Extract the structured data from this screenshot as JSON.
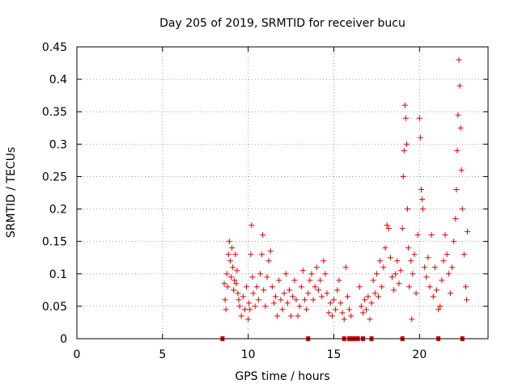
{
  "chart_data": {
    "type": "scatter",
    "title": "Day 205 of 2019, SRMTID for receiver bucu",
    "xlabel": "GPS time / hours",
    "ylabel": "SRMTID / TECUs",
    "xlim": [
      0,
      24
    ],
    "ylim": [
      0,
      0.45
    ],
    "xticks": [
      0,
      5,
      10,
      15,
      20
    ],
    "yticks": [
      0,
      0.05,
      0.1,
      0.15,
      0.2,
      0.25,
      0.3,
      0.35,
      0.4,
      0.45
    ],
    "xtick_labels": [
      "0",
      "5",
      "10",
      "15",
      "20"
    ],
    "ytick_labels": [
      "0",
      "0.05",
      "0.1",
      "0.15",
      "0.2",
      "0.25",
      "0.3",
      "0.35",
      "0.4",
      "0.45"
    ],
    "grid": true,
    "marker": "plus",
    "color": "#e00000",
    "baseline_markers_x": [
      8.5,
      13.5,
      15.6,
      15.9,
      16.0,
      16.1,
      16.2,
      16.4,
      16.7,
      17.2,
      19.0,
      21.1,
      22.5
    ],
    "series": [
      {
        "name": "SRMTID",
        "points": [
          [
            8.6,
            0.085
          ],
          [
            8.65,
            0.06
          ],
          [
            8.7,
            0.045
          ],
          [
            8.75,
            0.1
          ],
          [
            8.8,
            0.08
          ],
          [
            8.85,
            0.13
          ],
          [
            8.9,
            0.15
          ],
          [
            8.95,
            0.12
          ],
          [
            9.0,
            0.095
          ],
          [
            9.05,
            0.14
          ],
          [
            9.1,
            0.11
          ],
          [
            9.15,
            0.075
          ],
          [
            9.2,
            0.09
          ],
          [
            9.25,
            0.13
          ],
          [
            9.3,
            0.085
          ],
          [
            9.35,
            0.105
          ],
          [
            9.4,
            0.07
          ],
          [
            9.45,
            0.06
          ],
          [
            9.5,
            0.05
          ],
          [
            9.6,
            0.035
          ],
          [
            9.7,
            0.065
          ],
          [
            9.8,
            0.045
          ],
          [
            9.9,
            0.08
          ],
          [
            10.0,
            0.03
          ],
          [
            10.05,
            0.055
          ],
          [
            10.1,
            0.045
          ],
          [
            10.15,
            0.13
          ],
          [
            10.2,
            0.175
          ],
          [
            10.25,
            0.095
          ],
          [
            10.3,
            0.07
          ],
          [
            10.4,
            0.05
          ],
          [
            10.5,
            0.08
          ],
          [
            10.6,
            0.06
          ],
          [
            10.7,
            0.1
          ],
          [
            10.8,
            0.13
          ],
          [
            10.85,
            0.16
          ],
          [
            10.9,
            0.075
          ],
          [
            11.0,
            0.05
          ],
          [
            11.1,
            0.095
          ],
          [
            11.2,
            0.12
          ],
          [
            11.3,
            0.135
          ],
          [
            11.4,
            0.08
          ],
          [
            11.5,
            0.055
          ],
          [
            11.6,
            0.065
          ],
          [
            11.7,
            0.035
          ],
          [
            11.8,
            0.09
          ],
          [
            11.9,
            0.06
          ],
          [
            12.0,
            0.045
          ],
          [
            12.1,
            0.07
          ],
          [
            12.2,
            0.1
          ],
          [
            12.3,
            0.055
          ],
          [
            12.4,
            0.075
          ],
          [
            12.5,
            0.035
          ],
          [
            12.6,
            0.065
          ],
          [
            12.7,
            0.09
          ],
          [
            12.8,
            0.06
          ],
          [
            12.9,
            0.035
          ],
          [
            13.0,
            0.05
          ],
          [
            13.1,
            0.08
          ],
          [
            13.2,
            0.105
          ],
          [
            13.3,
            0.06
          ],
          [
            13.4,
            0.045
          ],
          [
            13.5,
            0.07
          ],
          [
            13.6,
            0.09
          ],
          [
            13.7,
            0.1
          ],
          [
            13.8,
            0.06
          ],
          [
            13.9,
            0.08
          ],
          [
            14.0,
            0.11
          ],
          [
            14.1,
            0.075
          ],
          [
            14.2,
            0.09
          ],
          [
            14.3,
            0.065
          ],
          [
            14.4,
            0.12
          ],
          [
            14.5,
            0.1
          ],
          [
            14.6,
            0.07
          ],
          [
            14.7,
            0.04
          ],
          [
            14.8,
            0.055
          ],
          [
            14.9,
            0.035
          ],
          [
            15.0,
            0.06
          ],
          [
            15.1,
            0.045
          ],
          [
            15.2,
            0.075
          ],
          [
            15.3,
            0.09
          ],
          [
            15.4,
            0.055
          ],
          [
            15.5,
            0.04
          ],
          [
            15.6,
            0.03
          ],
          [
            15.7,
            0.11
          ],
          [
            15.8,
            0.065
          ],
          [
            15.9,
            0.045
          ],
          [
            16.0,
            0.035
          ],
          [
            16.5,
            0.08
          ],
          [
            16.6,
            0.05
          ],
          [
            16.7,
            0.04
          ],
          [
            16.8,
            0.06
          ],
          [
            16.9,
            0.045
          ],
          [
            17.0,
            0.065
          ],
          [
            17.1,
            0.03
          ],
          [
            17.2,
            0.055
          ],
          [
            17.3,
            0.09
          ],
          [
            17.4,
            0.07
          ],
          [
            17.5,
            0.1
          ],
          [
            17.6,
            0.065
          ],
          [
            17.7,
            0.12
          ],
          [
            17.8,
            0.08
          ],
          [
            17.9,
            0.11
          ],
          [
            18.0,
            0.14
          ],
          [
            18.1,
            0.175
          ],
          [
            18.2,
            0.17
          ],
          [
            18.3,
            0.125
          ],
          [
            18.4,
            0.095
          ],
          [
            18.5,
            0.075
          ],
          [
            18.6,
            0.1
          ],
          [
            18.7,
            0.12
          ],
          [
            18.8,
            0.085
          ],
          [
            18.9,
            0.105
          ],
          [
            19.0,
            0.17
          ],
          [
            19.05,
            0.25
          ],
          [
            19.1,
            0.29
          ],
          [
            19.15,
            0.36
          ],
          [
            19.2,
            0.34
          ],
          [
            19.25,
            0.3
          ],
          [
            19.3,
            0.2
          ],
          [
            19.35,
            0.14
          ],
          [
            19.4,
            0.08
          ],
          [
            19.5,
            0.12
          ],
          [
            19.55,
            0.03
          ],
          [
            19.6,
            0.1
          ],
          [
            19.7,
            0.13
          ],
          [
            19.8,
            0.07
          ],
          [
            19.9,
            0.16
          ],
          [
            20.0,
            0.34
          ],
          [
            20.05,
            0.31
          ],
          [
            20.1,
            0.23
          ],
          [
            20.15,
            0.215
          ],
          [
            20.2,
            0.2
          ],
          [
            20.3,
            0.11
          ],
          [
            20.4,
            0.095
          ],
          [
            20.5,
            0.125
          ],
          [
            20.6,
            0.08
          ],
          [
            20.7,
            0.16
          ],
          [
            20.8,
            0.065
          ],
          [
            20.9,
            0.11
          ],
          [
            21.0,
            0.075
          ],
          [
            21.1,
            0.045
          ],
          [
            21.2,
            0.05
          ],
          [
            21.3,
            0.09
          ],
          [
            21.4,
            0.12
          ],
          [
            21.5,
            0.16
          ],
          [
            21.6,
            0.13
          ],
          [
            21.7,
            0.1
          ],
          [
            21.8,
            0.07
          ],
          [
            21.9,
            0.11
          ],
          [
            22.0,
            0.15
          ],
          [
            22.1,
            0.185
          ],
          [
            22.15,
            0.23
          ],
          [
            22.2,
            0.29
          ],
          [
            22.25,
            0.345
          ],
          [
            22.3,
            0.43
          ],
          [
            22.35,
            0.39
          ],
          [
            22.4,
            0.325
          ],
          [
            22.45,
            0.26
          ],
          [
            22.5,
            0.2
          ],
          [
            22.6,
            0.13
          ],
          [
            22.7,
            0.08
          ],
          [
            22.75,
            0.06
          ],
          [
            22.8,
            0.165
          ]
        ]
      }
    ]
  }
}
